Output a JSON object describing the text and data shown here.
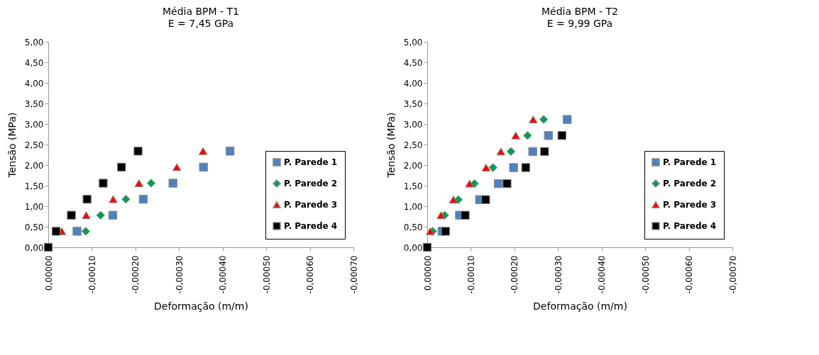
{
  "chart_data": [
    {
      "type": "scatter",
      "title": "Média  BPM - T1",
      "subtitle": "E = 7,45 GPa",
      "xlabel": "Deformação (m/m)",
      "ylabel": "Tensão (MPa)",
      "legend": "bottom right",
      "grid": false,
      "xlim": [
        0,
        -0.0007
      ],
      "ylim": [
        0,
        5
      ],
      "xticks": [
        {
          "value": 0,
          "label": "0,00000"
        },
        {
          "value": -0.0001,
          "label": "-0,00010"
        },
        {
          "value": -0.0002,
          "label": "-0,00020"
        },
        {
          "value": -0.0003,
          "label": "-0,00030"
        },
        {
          "value": -0.0004,
          "label": "-0,00040"
        },
        {
          "value": -0.0005,
          "label": "-0,00050"
        },
        {
          "value": -0.0006,
          "label": "-0,00060"
        },
        {
          "value": -0.0007,
          "label": "-0,00070"
        }
      ],
      "yticks": [
        {
          "value": 0,
          "label": "0,00"
        },
        {
          "value": 0.5,
          "label": "0,50"
        },
        {
          "value": 1,
          "label": "1,00"
        },
        {
          "value": 1.5,
          "label": "1,50"
        },
        {
          "value": 2,
          "label": "2,00"
        },
        {
          "value": 2.5,
          "label": "2,50"
        },
        {
          "value": 3,
          "label": "3,00"
        },
        {
          "value": 3.5,
          "label": "3,50"
        },
        {
          "value": 4,
          "label": "4,00"
        },
        {
          "value": 4.5,
          "label": "4,50"
        },
        {
          "value": 5,
          "label": "5,00"
        }
      ],
      "series": [
        {
          "name": "P. Parede 1",
          "color": "#4f81bd",
          "marker": "square",
          "x": [
            -6.6e-05,
            -0.000148,
            -0.000218,
            -0.000286,
            -0.000356,
            -0.000417
          ],
          "values": [
            0.39,
            0.78,
            1.17,
            1.56,
            1.95,
            2.34
          ]
        },
        {
          "name": "P. Parede 2",
          "color": "#00a050",
          "marker": "diamond",
          "x": [
            -8.6e-05,
            -0.00012,
            -0.000178,
            -0.000236
          ],
          "values": [
            0.39,
            0.78,
            1.17,
            1.56
          ]
        },
        {
          "name": "P. Parede 3",
          "color": "#ff0000",
          "marker": "triangle",
          "x": [
            -3.1e-05,
            -8.7e-05,
            -0.000149,
            -0.000208,
            -0.000295,
            -0.000355
          ],
          "values": [
            0.39,
            0.78,
            1.17,
            1.56,
            1.95,
            2.34
          ]
        },
        {
          "name": "P. Parede 4",
          "color": "#000000",
          "marker": "square",
          "x": [
            0,
            -1.8e-05,
            -5.3e-05,
            -8.9e-05,
            -0.000126,
            -0.000168,
            -0.000206
          ],
          "values": [
            0,
            0.39,
            0.78,
            1.17,
            1.56,
            1.95,
            2.34
          ]
        }
      ]
    },
    {
      "type": "scatter",
      "title": "Média  BPM - T2",
      "subtitle": "E = 9,99 GPa",
      "xlabel": "Deformação (m/m)",
      "ylabel": "Tensão (MPa)",
      "legend": "bottom right",
      "grid": false,
      "xlim": [
        0,
        -0.0007
      ],
      "ylim": [
        0,
        5
      ],
      "xticks": [
        {
          "value": 0,
          "label": "0,00000"
        },
        {
          "value": -0.0001,
          "label": "-0,00010"
        },
        {
          "value": -0.0002,
          "label": "-0,00020"
        },
        {
          "value": -0.0003,
          "label": "-0,00030"
        },
        {
          "value": -0.0004,
          "label": "-0,00040"
        },
        {
          "value": -0.0005,
          "label": "-0,00050"
        },
        {
          "value": -0.0006,
          "label": "-0,00060"
        },
        {
          "value": -0.0007,
          "label": "-0,00070"
        }
      ],
      "yticks": [
        {
          "value": 0,
          "label": "0,00"
        },
        {
          "value": 0.5,
          "label": "0,50"
        },
        {
          "value": 1,
          "label": "1,00"
        },
        {
          "value": 1.5,
          "label": "1,50"
        },
        {
          "value": 2,
          "label": "2,00"
        },
        {
          "value": 2.5,
          "label": "2,50"
        },
        {
          "value": 3,
          "label": "3,00"
        },
        {
          "value": 3.5,
          "label": "3,50"
        },
        {
          "value": 4,
          "label": "4,00"
        },
        {
          "value": 4.5,
          "label": "4,50"
        },
        {
          "value": 5,
          "label": "5,00"
        }
      ],
      "series": [
        {
          "name": "P. Parede 1",
          "color": "#4f81bd",
          "marker": "square",
          "x": [
            -3.4e-05,
            -7.4e-05,
            -0.00012,
            -0.000163,
            -0.000198,
            -0.000242,
            -0.000278,
            -0.000321
          ],
          "values": [
            0.39,
            0.78,
            1.16,
            1.55,
            1.94,
            2.33,
            2.72,
            3.11
          ]
        },
        {
          "name": "P. Parede 2",
          "color": "#00a050",
          "marker": "diamond",
          "x": [
            -1.25e-05,
            -4e-05,
            -7.15e-05,
            -0.0001085,
            -0.000151,
            -0.000192,
            -0.00023,
            -0.000267
          ],
          "values": [
            0.39,
            0.78,
            1.16,
            1.55,
            1.94,
            2.33,
            2.72,
            3.11
          ]
        },
        {
          "name": "P. Parede 3",
          "color": "#ff0000",
          "marker": "triangle",
          "x": [
            -7e-06,
            -3.15e-05,
            -6e-05,
            -9.7e-05,
            -0.000135,
            -0.000169,
            -0.000203,
            -0.000243
          ],
          "values": [
            0.39,
            0.78,
            1.16,
            1.55,
            1.94,
            2.33,
            2.72,
            3.11
          ]
        },
        {
          "name": "P. Parede 4",
          "color": "#000000",
          "marker": "square",
          "x": [
            0,
            -4.2e-05,
            -8.7e-05,
            -0.000134,
            -0.000183,
            -0.000226,
            -0.000269,
            -0.000309
          ],
          "values": [
            0,
            0.39,
            0.78,
            1.16,
            1.55,
            1.94,
            2.33,
            2.72
          ]
        }
      ]
    }
  ]
}
